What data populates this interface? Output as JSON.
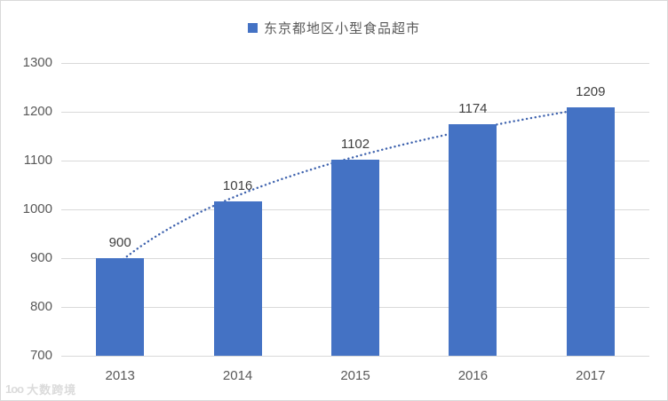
{
  "legend": {
    "label": "东京都地区小型食品超市",
    "marker_color": "#4472C4"
  },
  "watermark": {
    "logo_text": "1oo",
    "brand_text": "大数跨境"
  },
  "chart_data": {
    "type": "bar",
    "title": "",
    "series_name": "东京都地区小型食品超市",
    "categories": [
      "2013",
      "2014",
      "2015",
      "2016",
      "2017"
    ],
    "values": [
      900,
      1016,
      1102,
      1174,
      1209
    ],
    "data_labels": [
      900,
      1016,
      1102,
      1174,
      1209
    ],
    "xlabel": "",
    "ylabel": "",
    "ylim": [
      700,
      1300
    ],
    "yticks": [
      700,
      800,
      900,
      1000,
      1100,
      1200,
      1300
    ],
    "grid": true,
    "legend_position": "top",
    "bar_color": "#4472C4",
    "gridline_color": "#d9d9d9",
    "tick_label_color": "#595959",
    "data_label_color": "#404040",
    "trendline": {
      "type": "logarithmic",
      "style": "dotted",
      "color": "#3F63AE"
    }
  }
}
